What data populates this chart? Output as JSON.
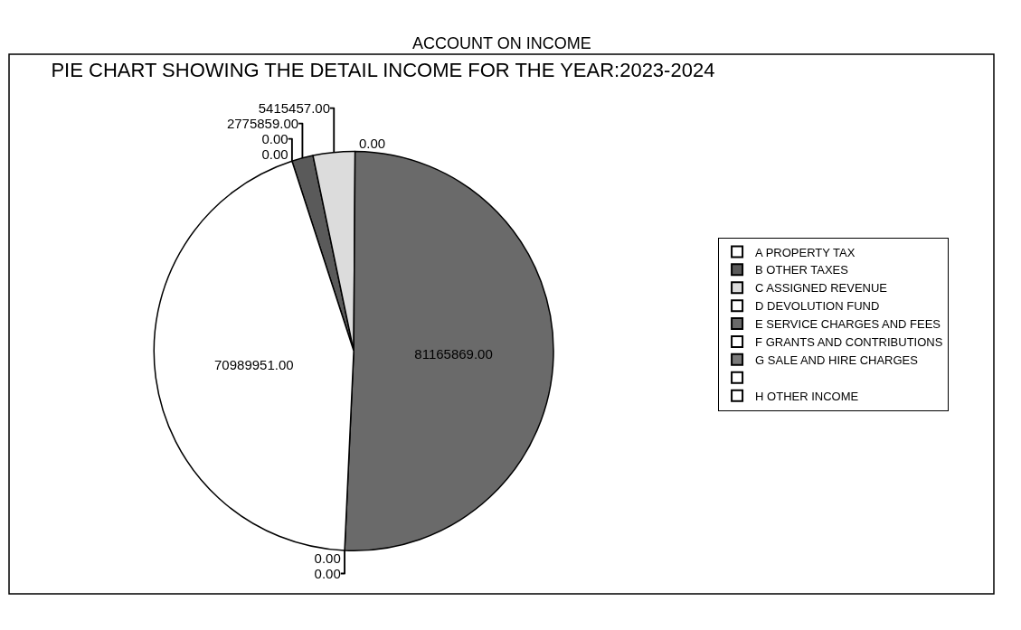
{
  "chart_data": {
    "type": "pie",
    "title": "PIE CHART SHOWING THE DETAIL INCOME FOR THE YEAR:2023-2024",
    "annotations": [
      "ACCOUNT ON INCOME"
    ],
    "categories": [
      "A PROPERTY TAX",
      "B OTHER TAXES",
      "C ASSIGNED REVENUE",
      "D DEVOLUTION FUND",
      "E SERVICE CHARGES AND FEES",
      "F GRANTS AND CONTRIBUTIONS",
      "G SALE AND HIRE CHARGES",
      null,
      "H OTHER INCOME"
    ],
    "values": [
      0,
      2775859,
      5415457,
      0,
      81165869,
      0,
      0,
      70989951,
      0
    ],
    "value_labels": [
      "0.00",
      "2775859.00",
      "5415457.00",
      "0.00",
      "81165869.00",
      "0.00",
      "0.00",
      "70989951.00",
      "0.00"
    ],
    "colors": [
      "#ffffff",
      "#5a5a5a",
      "#dcdcdc",
      "#ffffff",
      "#6a6a6a",
      "#ffffff",
      "#7a7a7a",
      "#ffffff",
      "#ffffff"
    ],
    "legend": "right"
  }
}
